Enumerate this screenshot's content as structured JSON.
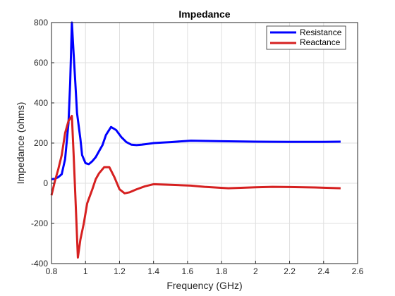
{
  "chart_data": {
    "type": "line",
    "title": "Impedance",
    "xlabel": "Frequency (GHz)",
    "ylabel": "Impedance (ohms)",
    "xlim": [
      0.8,
      2.6
    ],
    "ylim": [
      -400,
      800
    ],
    "xticks": [
      0.8,
      1,
      1.2,
      1.4,
      1.6,
      1.8,
      2,
      2.2,
      2.4,
      2.6
    ],
    "xtick_labels": [
      "0.8",
      "1",
      "1.2",
      "1.4",
      "1.6",
      "1.8",
      "2",
      "2.2",
      "2.4",
      "2.6"
    ],
    "yticks": [
      -400,
      -200,
      0,
      200,
      400,
      600,
      800
    ],
    "ytick_labels": [
      "-400",
      "-200",
      "0",
      "200",
      "400",
      "600",
      "800"
    ],
    "grid": true,
    "legend_position": "top-right",
    "series": [
      {
        "name": "Resistance",
        "color": "#0000ff",
        "points": [
          [
            0.8,
            20
          ],
          [
            0.82,
            22
          ],
          [
            0.84,
            30
          ],
          [
            0.86,
            45
          ],
          [
            0.88,
            120
          ],
          [
            0.9,
            300
          ],
          [
            0.91,
            500
          ],
          [
            0.92,
            800
          ],
          [
            0.93,
            650
          ],
          [
            0.94,
            500
          ],
          [
            0.95,
            350
          ],
          [
            0.97,
            220
          ],
          [
            0.98,
            140
          ],
          [
            1.0,
            100
          ],
          [
            1.02,
            95
          ],
          [
            1.04,
            110
          ],
          [
            1.06,
            130
          ],
          [
            1.08,
            160
          ],
          [
            1.1,
            190
          ],
          [
            1.12,
            240
          ],
          [
            1.15,
            280
          ],
          [
            1.18,
            265
          ],
          [
            1.21,
            230
          ],
          [
            1.24,
            205
          ],
          [
            1.27,
            192
          ],
          [
            1.3,
            190
          ],
          [
            1.33,
            192
          ],
          [
            1.36,
            195
          ],
          [
            1.4,
            200
          ],
          [
            1.5,
            205
          ],
          [
            1.62,
            212
          ],
          [
            1.8,
            209
          ],
          [
            2.0,
            207
          ],
          [
            2.2,
            206
          ],
          [
            2.4,
            206
          ],
          [
            2.5,
            207
          ]
        ]
      },
      {
        "name": "Reactance",
        "color": "#d62020",
        "points": [
          [
            0.8,
            -60
          ],
          [
            0.82,
            10
          ],
          [
            0.84,
            70
          ],
          [
            0.86,
            140
          ],
          [
            0.88,
            250
          ],
          [
            0.9,
            310
          ],
          [
            0.92,
            335
          ],
          [
            0.93,
            150
          ],
          [
            0.94,
            -60
          ],
          [
            0.955,
            -370
          ],
          [
            0.97,
            -280
          ],
          [
            0.99,
            -200
          ],
          [
            1.01,
            -100
          ],
          [
            1.04,
            -30
          ],
          [
            1.06,
            20
          ],
          [
            1.08,
            50
          ],
          [
            1.11,
            80
          ],
          [
            1.14,
            80
          ],
          [
            1.17,
            30
          ],
          [
            1.2,
            -30
          ],
          [
            1.23,
            -50
          ],
          [
            1.26,
            -45
          ],
          [
            1.3,
            -30
          ],
          [
            1.35,
            -15
          ],
          [
            1.4,
            -5
          ],
          [
            1.5,
            -8
          ],
          [
            1.62,
            -12
          ],
          [
            1.7,
            -18
          ],
          [
            1.84,
            -25
          ],
          [
            2.0,
            -20
          ],
          [
            2.1,
            -18
          ],
          [
            2.2,
            -19
          ],
          [
            2.35,
            -21
          ],
          [
            2.5,
            -25
          ]
        ]
      }
    ]
  }
}
